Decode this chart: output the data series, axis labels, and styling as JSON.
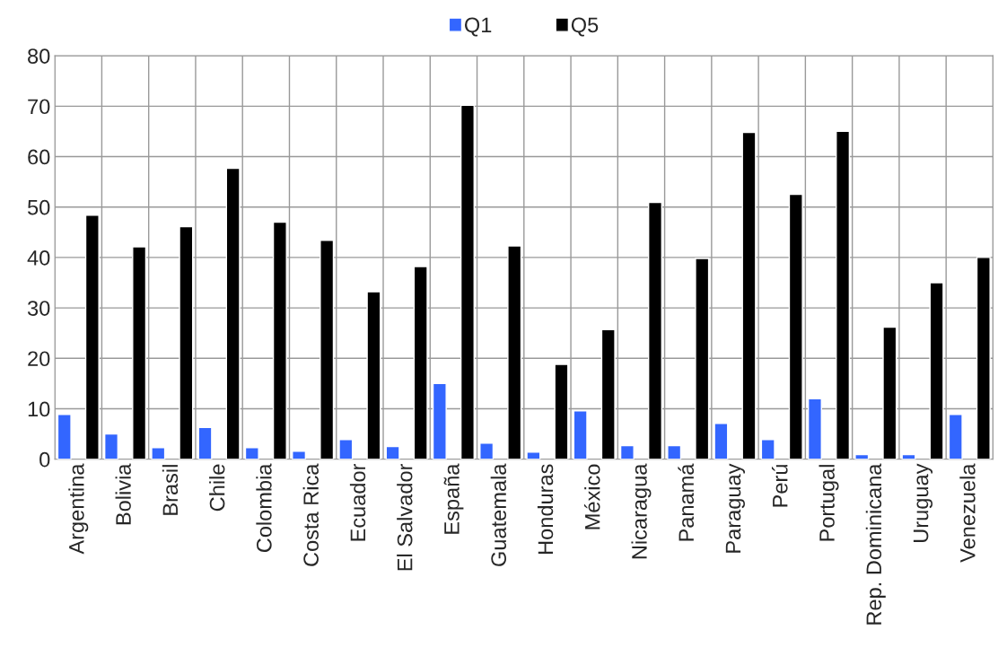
{
  "chart_data": {
    "type": "bar",
    "categories": [
      "Argentina",
      "Bolivia",
      "Brasil",
      "Chile",
      "Colombia",
      "Costa Rica",
      "Ecuador",
      "El Salvador",
      "España",
      "Guatemala",
      "Honduras",
      "México",
      "Nicaragua",
      "Panamá",
      "Paraguay",
      "Perú",
      "Portugal",
      "Rep. Dominicana",
      "Uruguay",
      "Venezuela"
    ],
    "series": [
      {
        "name": "Q1",
        "color": "#3366ff",
        "values": [
          8.9,
          5.0,
          2.3,
          6.3,
          2.3,
          1.6,
          3.9,
          2.5,
          15.0,
          3.2,
          1.4,
          9.6,
          2.7,
          2.7,
          7.1,
          3.9,
          12.0,
          0.9,
          0.9,
          8.9
        ]
      },
      {
        "name": "Q5",
        "color": "#000000",
        "values": [
          48.4,
          42.1,
          46.1,
          57.7,
          47.0,
          43.4,
          33.2,
          38.2,
          70.2,
          42.3,
          18.8,
          25.7,
          50.9,
          39.8,
          64.8,
          52.5,
          65.0,
          26.2,
          35.0,
          40.0
        ]
      }
    ],
    "ylim": [
      0,
      80
    ],
    "yticks": [
      0,
      10,
      20,
      30,
      40,
      50,
      60,
      70,
      80
    ],
    "grid": true,
    "legend": "top"
  }
}
